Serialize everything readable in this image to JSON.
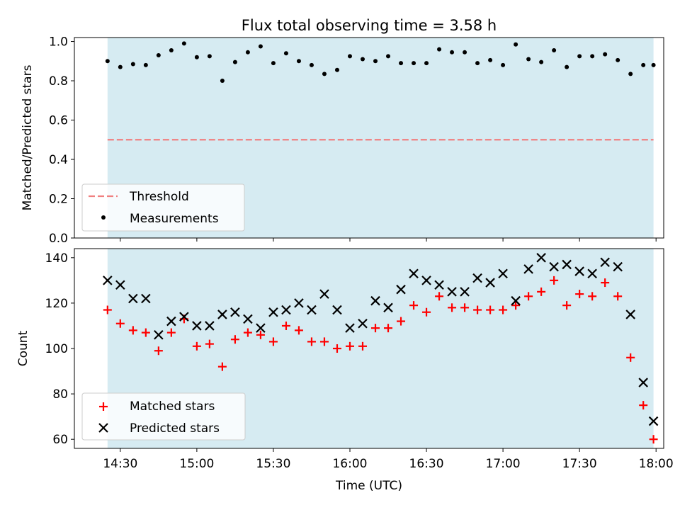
{
  "figure": {
    "title": "Flux total observing time = 3.58 h"
  },
  "colors": {
    "shade": "#add8e6",
    "threshold": "#f08080",
    "measurement": "#000000",
    "matched": "#ff0000",
    "predicted": "#000000"
  },
  "chart_data": [
    {
      "type": "scatter",
      "panel": "top",
      "ylabel": "Matched/Predicted stars",
      "ylim": [
        0,
        1.02
      ],
      "yticks": [
        0.0,
        0.2,
        0.4,
        0.6,
        0.8,
        1.0
      ],
      "ytick_labels": [
        "0.0",
        "0.2",
        "0.4",
        "0.6",
        "0.8",
        "1.0"
      ],
      "xlim": [
        "14:12",
        "18:03"
      ],
      "shaded_span": [
        "14:25",
        "17:59"
      ],
      "threshold": {
        "name": "Threshold",
        "y": 0.5,
        "style": "dashed"
      },
      "legend": {
        "placement": "lower-left",
        "entries": [
          "Threshold",
          "Measurements"
        ]
      },
      "series": [
        {
          "name": "Measurements",
          "marker": "dot",
          "x": [
            "14:25",
            "14:30",
            "14:35",
            "14:40",
            "14:45",
            "14:50",
            "14:55",
            "15:00",
            "15:05",
            "15:10",
            "15:15",
            "15:20",
            "15:25",
            "15:30",
            "15:35",
            "15:40",
            "15:45",
            "15:50",
            "15:55",
            "16:00",
            "16:05",
            "16:10",
            "16:15",
            "16:20",
            "16:25",
            "16:30",
            "16:35",
            "16:40",
            "16:45",
            "16:50",
            "16:55",
            "17:00",
            "17:05",
            "17:10",
            "17:15",
            "17:20",
            "17:25",
            "17:30",
            "17:35",
            "17:40",
            "17:45",
            "17:50",
            "17:55",
            "17:59"
          ],
          "y": [
            0.9,
            0.87,
            0.885,
            0.88,
            0.93,
            0.955,
            0.99,
            0.92,
            0.925,
            0.8,
            0.895,
            0.945,
            0.975,
            0.89,
            0.94,
            0.9,
            0.88,
            0.835,
            0.855,
            0.925,
            0.91,
            0.9,
            0.925,
            0.89,
            0.89,
            0.89,
            0.96,
            0.945,
            0.945,
            0.89,
            0.905,
            0.88,
            0.985,
            0.91,
            0.895,
            0.955,
            0.87,
            0.925,
            0.925,
            0.935,
            0.905,
            0.835,
            0.88,
            0.88
          ]
        }
      ]
    },
    {
      "type": "scatter",
      "panel": "bottom",
      "xlabel": "Time (UTC)",
      "ylabel": "Count",
      "ylim": [
        56,
        144
      ],
      "yticks": [
        60,
        80,
        100,
        120,
        140
      ],
      "ytick_labels": [
        "60",
        "80",
        "100",
        "120",
        "140"
      ],
      "xlim": [
        "14:12",
        "18:03"
      ],
      "xticks": [
        "14:30",
        "15:00",
        "15:30",
        "16:00",
        "16:30",
        "17:00",
        "17:30",
        "18:00"
      ],
      "shaded_span": [
        "14:25",
        "17:59"
      ],
      "legend": {
        "placement": "lower-left",
        "entries": [
          "Matched stars",
          "Predicted stars"
        ]
      },
      "x": [
        "14:25",
        "14:30",
        "14:35",
        "14:40",
        "14:45",
        "14:50",
        "14:55",
        "15:00",
        "15:05",
        "15:10",
        "15:15",
        "15:20",
        "15:25",
        "15:30",
        "15:35",
        "15:40",
        "15:45",
        "15:50",
        "15:55",
        "16:00",
        "16:05",
        "16:10",
        "16:15",
        "16:20",
        "16:25",
        "16:30",
        "16:35",
        "16:40",
        "16:45",
        "16:50",
        "16:55",
        "17:00",
        "17:05",
        "17:10",
        "17:15",
        "17:20",
        "17:25",
        "17:30",
        "17:35",
        "17:40",
        "17:45",
        "17:50",
        "17:55",
        "17:59"
      ],
      "series": [
        {
          "name": "Matched stars",
          "marker": "plus",
          "values": [
            117,
            111,
            108,
            107,
            99,
            107,
            113,
            101,
            102,
            92,
            104,
            107,
            106,
            103,
            110,
            108,
            103,
            103,
            100,
            101,
            101,
            109,
            109,
            112,
            119,
            116,
            123,
            118,
            118,
            117,
            117,
            117,
            119,
            123,
            125,
            130,
            119,
            124,
            123,
            129,
            123,
            96,
            75,
            60
          ]
        },
        {
          "name": "Predicted stars",
          "marker": "x",
          "values": [
            130,
            128,
            122,
            122,
            106,
            112,
            114,
            110,
            110,
            115,
            116,
            113,
            109,
            116,
            117,
            120,
            117,
            124,
            117,
            109,
            111,
            121,
            118,
            126,
            133,
            130,
            128,
            125,
            125,
            131,
            129,
            133,
            121,
            135,
            140,
            136,
            137,
            134,
            133,
            138,
            136,
            115,
            85,
            68
          ]
        }
      ]
    }
  ]
}
